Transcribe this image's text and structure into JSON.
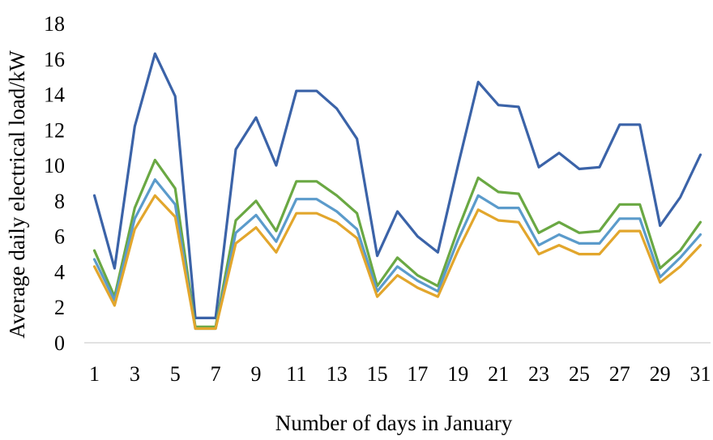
{
  "chart_data": {
    "type": "line",
    "title": "",
    "xlabel": "Number of days in January",
    "ylabel": "Average daily electrical load/kW",
    "x": [
      1,
      2,
      3,
      4,
      5,
      6,
      7,
      8,
      9,
      10,
      11,
      12,
      13,
      14,
      15,
      16,
      17,
      18,
      19,
      20,
      21,
      22,
      23,
      24,
      25,
      26,
      27,
      28,
      29,
      30,
      31
    ],
    "xticks": [
      "1",
      "3",
      "5",
      "7",
      "9",
      "11",
      "13",
      "15",
      "17",
      "19",
      "21",
      "23",
      "25",
      "27",
      "29",
      "31"
    ],
    "yticks": [
      "0",
      "2",
      "4",
      "6",
      "8",
      "10",
      "12",
      "14",
      "16",
      "18"
    ],
    "ylim": [
      0,
      18
    ],
    "grid": false,
    "legend": "none",
    "series": [
      {
        "color": "#3b63a8",
        "values": [
          8.3,
          4.2,
          12.2,
          16.3,
          13.9,
          1.4,
          1.4,
          10.9,
          12.7,
          10.0,
          14.2,
          14.2,
          13.2,
          11.5,
          4.9,
          7.4,
          6.0,
          5.1,
          10.0,
          14.7,
          13.4,
          13.3,
          9.9,
          10.7,
          9.8,
          9.9,
          12.3,
          12.3,
          6.6,
          8.2,
          10.6
        ]
      },
      {
        "color": "#6aa843",
        "values": [
          5.2,
          2.6,
          7.6,
          10.3,
          8.7,
          0.9,
          0.9,
          6.9,
          8.0,
          6.3,
          9.1,
          9.1,
          8.3,
          7.3,
          3.2,
          4.8,
          3.8,
          3.2,
          6.4,
          9.3,
          8.5,
          8.4,
          6.2,
          6.8,
          6.2,
          6.3,
          7.8,
          7.8,
          4.2,
          5.2,
          6.8
        ]
      },
      {
        "color": "#5b9bcb",
        "values": [
          4.7,
          2.4,
          7.0,
          9.2,
          7.8,
          0.8,
          0.8,
          6.2,
          7.2,
          5.7,
          8.1,
          8.1,
          7.4,
          6.4,
          2.9,
          4.3,
          3.5,
          2.9,
          5.8,
          8.3,
          7.6,
          7.6,
          5.5,
          6.1,
          5.6,
          5.6,
          7.0,
          7.0,
          3.7,
          4.8,
          6.1
        ]
      },
      {
        "color": "#e2a62c",
        "values": [
          4.3,
          2.1,
          6.4,
          8.3,
          7.1,
          0.8,
          0.8,
          5.6,
          6.5,
          5.1,
          7.3,
          7.3,
          6.8,
          5.9,
          2.6,
          3.8,
          3.1,
          2.6,
          5.2,
          7.5,
          6.9,
          6.8,
          5.0,
          5.5,
          5.0,
          5.0,
          6.3,
          6.3,
          3.4,
          4.3,
          5.5
        ]
      }
    ]
  }
}
